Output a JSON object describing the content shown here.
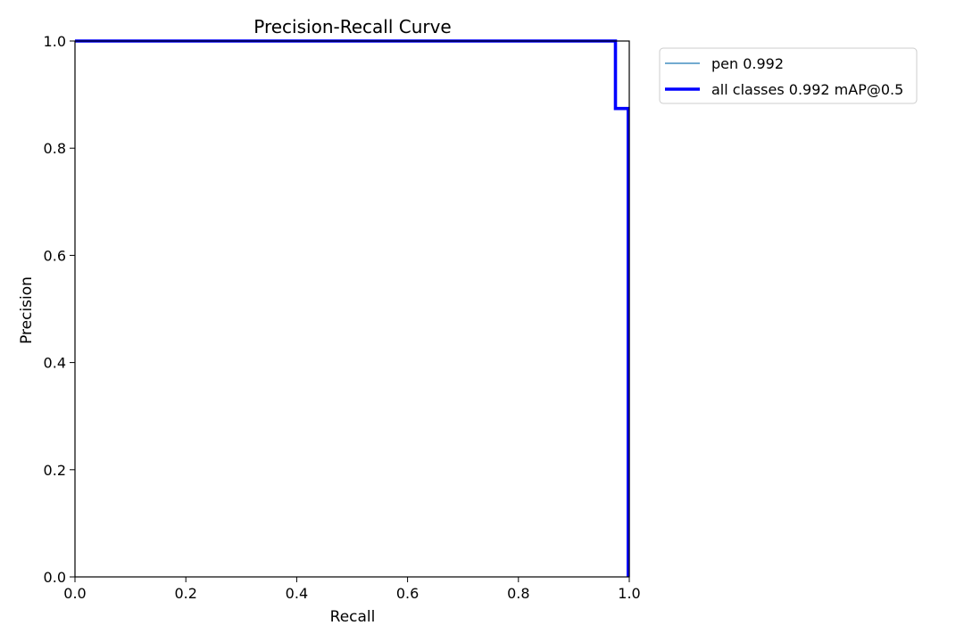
{
  "chart_data": {
    "type": "line",
    "title": "Precision-Recall Curve",
    "xlabel": "Recall",
    "ylabel": "Precision",
    "xlim": [
      0,
      1
    ],
    "ylim": [
      0,
      1
    ],
    "xticks": [
      "0.0",
      "0.2",
      "0.4",
      "0.6",
      "0.8",
      "1.0"
    ],
    "yticks": [
      "0.0",
      "0.2",
      "0.4",
      "0.6",
      "0.8",
      "1.0"
    ],
    "grid": false,
    "legend": {
      "placement": "outside-top-right"
    },
    "series": [
      {
        "name": "pen 0.992",
        "color": "#1f77b4",
        "linewidth": "thin",
        "x": [
          0.0,
          0.975,
          0.975,
          0.998,
          0.998
        ],
        "y": [
          1.0,
          1.0,
          0.874,
          0.874,
          0.0
        ]
      },
      {
        "name": "all classes 0.992 mAP@0.5",
        "color": "#0000ff",
        "linewidth": "thick",
        "x": [
          0.0,
          0.975,
          0.975,
          0.998,
          0.998
        ],
        "y": [
          1.0,
          1.0,
          0.874,
          0.874,
          0.0
        ]
      }
    ]
  }
}
